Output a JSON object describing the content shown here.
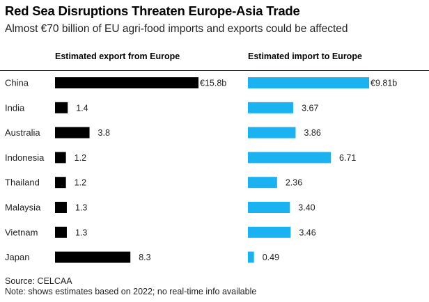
{
  "title": "Red Sea Disruptions Threaten Europe-Asia Trade",
  "subtitle": "Almost €70 billion of EU agri-food imports and exports could be affected",
  "source": "Source: CELCAA",
  "note": "Note: shows estimates based on 2022; no real-time info available",
  "colors": {
    "export": "#000000",
    "import": "#1ab2f0"
  },
  "chart_data": {
    "type": "bar",
    "orientation": "horizontal",
    "categories": [
      "China",
      "India",
      "Australia",
      "Indonesia",
      "Thailand",
      "Malaysia",
      "Vietnam",
      "Japan"
    ],
    "series": [
      {
        "name": "Estimated export from Europe",
        "values": [
          15.8,
          1.4,
          3.8,
          1.2,
          1.2,
          1.3,
          1.3,
          8.3
        ],
        "labels": [
          "€15.8b",
          "1.4",
          "3.8",
          "1.2",
          "1.2",
          "1.3",
          "1.3",
          "8.3"
        ]
      },
      {
        "name": "Estimated import to Europe",
        "values": [
          9.81,
          3.67,
          3.86,
          6.71,
          2.36,
          3.4,
          3.46,
          0.49
        ],
        "labels": [
          "€9.81b",
          "3.67",
          "3.86",
          "6.71",
          "2.36",
          "3.40",
          "3.46",
          "0.49"
        ]
      }
    ]
  }
}
